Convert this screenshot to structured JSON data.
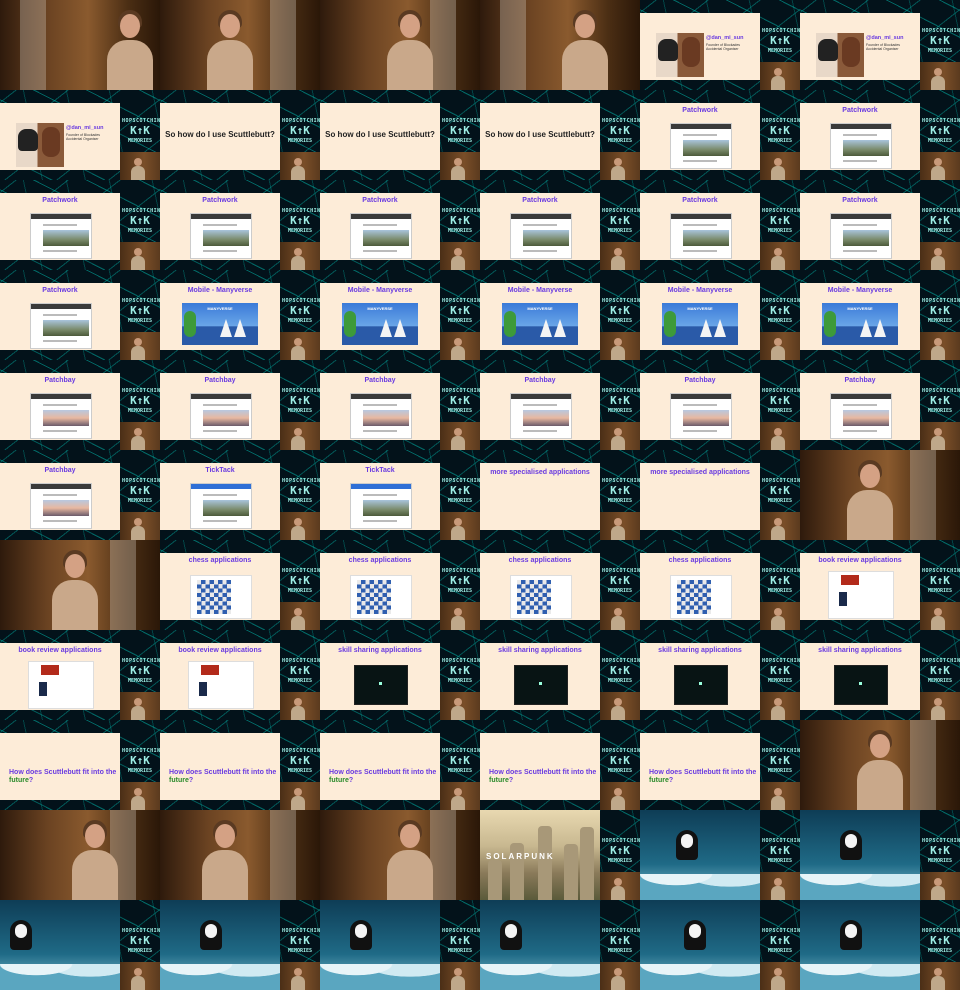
{
  "logo": {
    "line1": "HOPSCOTCHING",
    "line2": "K↑K",
    "line3": "MEMORIES"
  },
  "tiles": [
    {
      "kind": "camera",
      "person_x": 120
    },
    {
      "kind": "camera",
      "person_x": 60
    },
    {
      "kind": "camera",
      "person_x": 80
    },
    {
      "kind": "camera",
      "person_x": 95
    },
    {
      "kind": "profile",
      "handle": "@dan_mi_sun",
      "subtitle": "Founder of Blockades Accidental Organiser"
    },
    {
      "kind": "profile",
      "handle": "@dan_mi_sun",
      "subtitle": "Founder of Blockades Accidental Organiser"
    },
    {
      "kind": "profile",
      "handle": "@dan_mi_sun",
      "subtitle": "Founder of Blockades Accidental Organiser"
    },
    {
      "kind": "center-title",
      "title": "So how do I use Scuttlebutt?"
    },
    {
      "kind": "center-title",
      "title": "So how do I use Scuttlebutt?"
    },
    {
      "kind": "center-title",
      "title": "So how do I use Scuttlebutt?"
    },
    {
      "kind": "screenshot",
      "title": "Patchwork"
    },
    {
      "kind": "screenshot",
      "title": "Patchwork"
    },
    {
      "kind": "screenshot",
      "title": "Patchwork"
    },
    {
      "kind": "screenshot",
      "title": "Patchwork"
    },
    {
      "kind": "screenshot",
      "title": "Patchwork"
    },
    {
      "kind": "screenshot",
      "title": "Patchwork"
    },
    {
      "kind": "screenshot",
      "title": "Patchwork"
    },
    {
      "kind": "screenshot",
      "title": "Patchwork"
    },
    {
      "kind": "screenshot",
      "title": "Patchwork"
    },
    {
      "kind": "manyverse",
      "title": "Mobile - Manyverse",
      "banner": "MANYVERSE"
    },
    {
      "kind": "manyverse",
      "title": "Mobile - Manyverse",
      "banner": "MANYVERSE"
    },
    {
      "kind": "manyverse",
      "title": "Mobile - Manyverse",
      "banner": "MANYVERSE"
    },
    {
      "kind": "manyverse",
      "title": "Mobile - Manyverse",
      "banner": "MANYVERSE"
    },
    {
      "kind": "manyverse",
      "title": "Mobile - Manyverse",
      "banner": "MANYVERSE"
    },
    {
      "kind": "sunset",
      "title": "Patchbay"
    },
    {
      "kind": "sunset",
      "title": "Patchbay"
    },
    {
      "kind": "sunset",
      "title": "Patchbay"
    },
    {
      "kind": "sunset",
      "title": "Patchbay"
    },
    {
      "kind": "sunset",
      "title": "Patchbay"
    },
    {
      "kind": "sunset",
      "title": "Patchbay"
    },
    {
      "kind": "sunset",
      "title": "Patchbay"
    },
    {
      "kind": "ticktack",
      "title": "TickTack"
    },
    {
      "kind": "ticktack",
      "title": "TickTack"
    },
    {
      "kind": "text-only",
      "title": "more specialised applications"
    },
    {
      "kind": "text-only",
      "title": "more specialised applications"
    },
    {
      "kind": "camera",
      "person_x": 60
    },
    {
      "kind": "camera",
      "person_x": 65
    },
    {
      "kind": "chess",
      "title": "chess applications"
    },
    {
      "kind": "chess",
      "title": "chess applications"
    },
    {
      "kind": "chess",
      "title": "chess applications"
    },
    {
      "kind": "chess",
      "title": "chess applications"
    },
    {
      "kind": "book",
      "title": "book review applications"
    },
    {
      "kind": "book",
      "title": "book review applications"
    },
    {
      "kind": "book",
      "title": "book review applications"
    },
    {
      "kind": "skill",
      "title": "skill sharing applications"
    },
    {
      "kind": "skill",
      "title": "skill sharing applications"
    },
    {
      "kind": "skill",
      "title": "skill sharing applications"
    },
    {
      "kind": "skill",
      "title": "skill sharing applications"
    },
    {
      "kind": "future",
      "q": "How does Scuttlebutt fit into the ",
      "f": "future",
      "end": "?"
    },
    {
      "kind": "future",
      "q": "How does Scuttlebutt fit into the ",
      "f": "future",
      "end": "?"
    },
    {
      "kind": "future",
      "q": "How does Scuttlebutt fit into the ",
      "f": "future",
      "end": "?"
    },
    {
      "kind": "future",
      "q": "How does Scuttlebutt fit into the ",
      "f": "future",
      "end": "?"
    },
    {
      "kind": "future",
      "q": "How does Scuttlebutt fit into the ",
      "f": "future",
      "end": "?"
    },
    {
      "kind": "camera",
      "person_x": 70
    },
    {
      "kind": "camera",
      "person_x": 85
    },
    {
      "kind": "camera",
      "person_x": 55
    },
    {
      "kind": "camera",
      "person_x": 80
    },
    {
      "kind": "solarpunk",
      "label": "SOLARPUNK"
    },
    {
      "kind": "sea",
      "nf_x": 36
    },
    {
      "kind": "sea",
      "nf_x": 40
    },
    {
      "kind": "sea",
      "nf_x": 10
    },
    {
      "kind": "sea",
      "nf_x": 40
    },
    {
      "kind": "sea",
      "nf_x": 30
    },
    {
      "kind": "sea",
      "nf_x": 20
    },
    {
      "kind": "sea",
      "nf_x": 44
    },
    {
      "kind": "sea",
      "nf_x": 40
    }
  ]
}
